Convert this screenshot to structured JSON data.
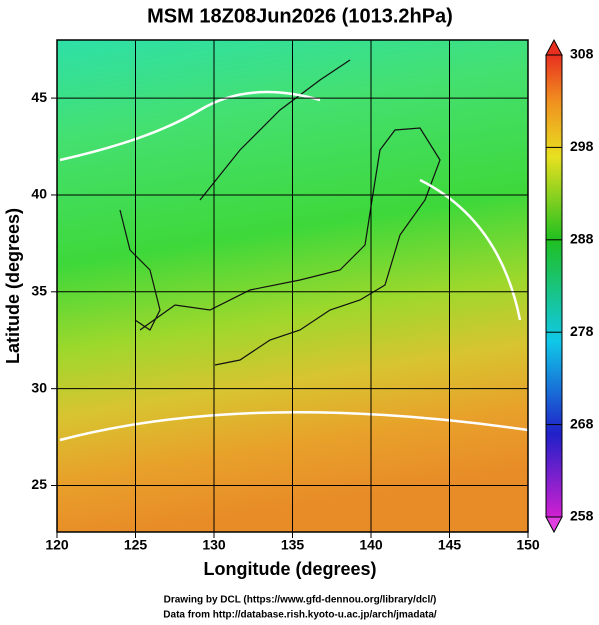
{
  "chart_data": {
    "type": "map",
    "title": "MSM 18Z08Jun2026 (1013.2hPa)",
    "x_label": "Longitude (degrees)",
    "y_label": "Latitude  (degrees)",
    "xlim": [
      120,
      150
    ],
    "ylim": [
      22.6,
      48
    ],
    "xticks": [
      120,
      125,
      130,
      135,
      140,
      145,
      150
    ],
    "yticks": [
      25,
      30,
      35,
      40,
      45
    ],
    "grid": true,
    "colorbar": {
      "lim": [
        258,
        308
      ],
      "ticks": [
        258,
        268,
        278,
        288,
        298,
        308
      ]
    }
  },
  "credits": [
    "Drawing by DCL (https://www.gfd-dennou.org/library/dcl/)",
    "Data from http://database.rish.kyoto-u.ac.jp/arch/jmadata/"
  ]
}
